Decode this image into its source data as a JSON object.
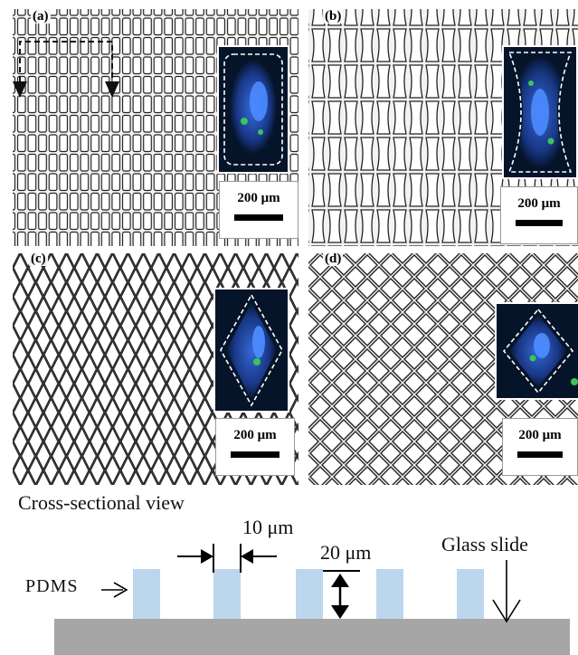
{
  "panels": [
    {
      "label": "(a)",
      "shape": "rectangle",
      "scale_label": "200 μm"
    },
    {
      "label": "(b)",
      "shape": "bowtie",
      "scale_label": "200 μm"
    },
    {
      "label": "(c)",
      "shape": "diamond",
      "scale_label": "200 μm"
    },
    {
      "label": "(d)",
      "shape": "square-diamond",
      "scale_label": "200 μm"
    }
  ],
  "cross_section": {
    "title": "Cross-sectional view",
    "width_label": "10 μm",
    "height_label": "20 μm",
    "pdms_label": "PDMS",
    "glass_label": "Glass slide"
  },
  "colors": {
    "pdms": "#bcd6ee",
    "glass": "#a6a6a6",
    "grid": "#222222",
    "nucleus": "#2f6bff",
    "actin": "#3bc45a"
  }
}
